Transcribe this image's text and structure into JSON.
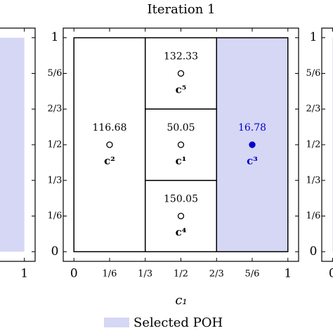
{
  "chart_data": {
    "type": "partition",
    "title": "Iteration 1",
    "xlabel": "c₁",
    "xlim": [
      -0.05,
      1.05
    ],
    "ylim": [
      -0.045,
      1.045
    ],
    "xticks": [
      0,
      {
        "value": 0.1667,
        "label": "1/6"
      },
      {
        "value": 0.3333,
        "label": "1/3"
      },
      {
        "value": 0.5,
        "label": "1/2"
      },
      {
        "value": 0.6667,
        "label": "2/3"
      },
      {
        "value": 0.8333,
        "label": "5/6"
      },
      1
    ],
    "yticks": [
      0,
      {
        "value": 0.1667,
        "label": "1/6"
      },
      {
        "value": 0.3333,
        "label": "1/3"
      },
      {
        "value": 0.5,
        "label": "1/2"
      },
      {
        "value": 0.6667,
        "label": "2/3"
      },
      {
        "value": 0.8333,
        "label": "5/6"
      },
      1
    ],
    "fill_color": "#d6d6f5",
    "selected_color": "#0000cc",
    "cells": [
      {
        "x": [
          0,
          0.3333
        ],
        "y": [
          0,
          1
        ],
        "selected": false
      },
      {
        "x": [
          0.3333,
          0.6667
        ],
        "y": [
          0.6667,
          1
        ],
        "selected": false
      },
      {
        "x": [
          0.3333,
          0.6667
        ],
        "y": [
          0.3333,
          0.6667
        ],
        "selected": false
      },
      {
        "x": [
          0.3333,
          0.6667
        ],
        "y": [
          0,
          0.3333
        ],
        "selected": false
      },
      {
        "x": [
          0.6667,
          1
        ],
        "y": [
          0,
          1
        ],
        "selected": true
      }
    ],
    "points": [
      {
        "name": "c²",
        "x": 0.1667,
        "y": 0.5,
        "value": 116.68,
        "selected": false
      },
      {
        "name": "c⁵",
        "x": 0.5,
        "y": 0.8333,
        "value": 132.33,
        "selected": false
      },
      {
        "name": "c¹",
        "x": 0.5,
        "y": 0.5,
        "value": 50.05,
        "selected": false
      },
      {
        "name": "c³",
        "x": 0.8333,
        "y": 0.5,
        "value": 16.78,
        "selected": true
      },
      {
        "name": "c⁴",
        "x": 0.5,
        "y": 0.1667,
        "value": 150.05,
        "selected": false
      }
    ],
    "legend": "Selected POH"
  }
}
